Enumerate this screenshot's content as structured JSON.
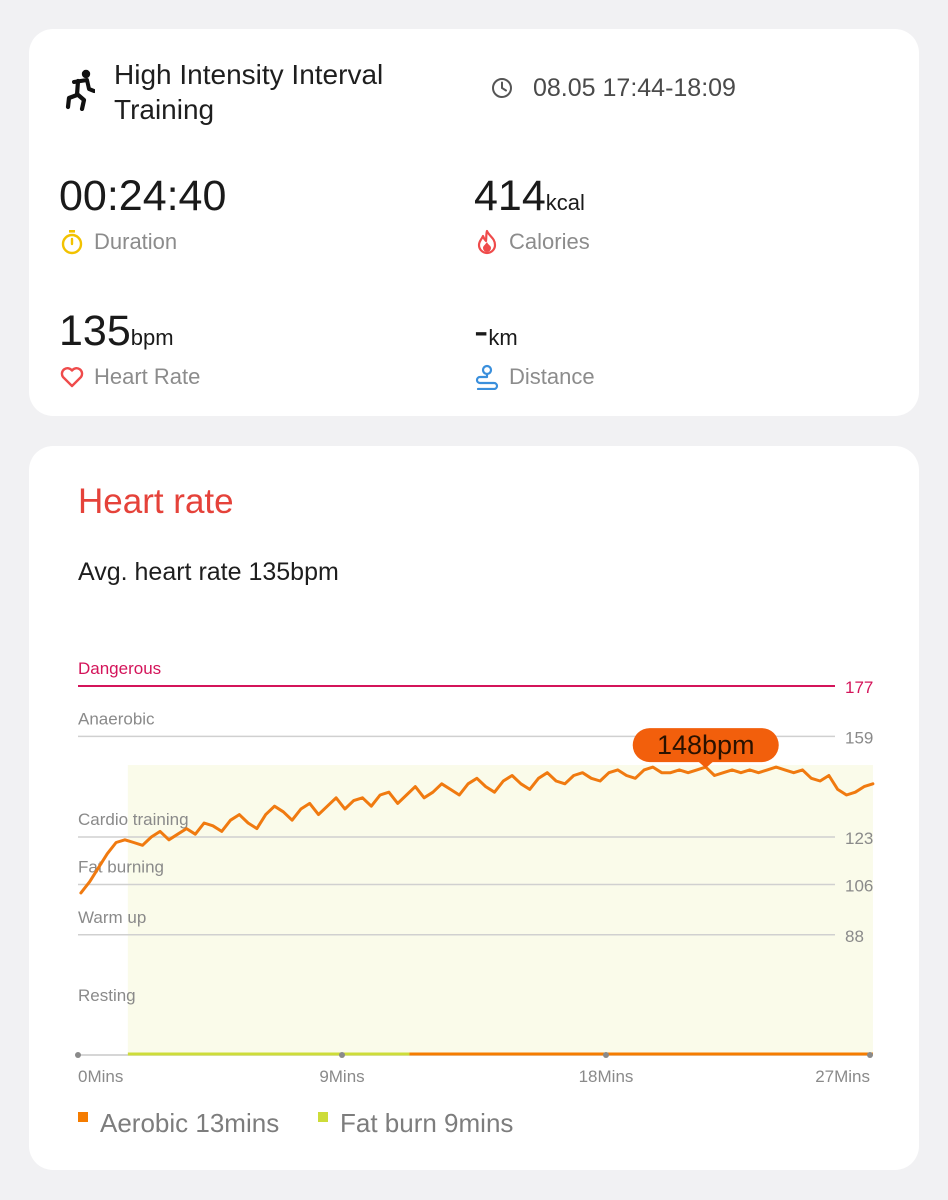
{
  "activity": {
    "icon": "running-person-icon",
    "title": "High Intensity Interval Training",
    "datetime": "08.05 17:44-18:09"
  },
  "metrics": {
    "duration": {
      "value": "00:24:40",
      "label": "Duration",
      "icon": "stopwatch-icon",
      "color": "#f2c200"
    },
    "calories": {
      "value": "414",
      "unit": "kcal",
      "label": "Calories",
      "icon": "flame-icon",
      "color": "#ef4b4b"
    },
    "heart_rate": {
      "value": "135",
      "unit": "bpm",
      "label": "Heart Rate",
      "icon": "heart-icon",
      "color": "#ef4b4b"
    },
    "distance": {
      "value": "-",
      "unit": "km",
      "label": "Distance",
      "icon": "route-icon",
      "color": "#3a8fdc"
    }
  },
  "heart_rate_section": {
    "title": "Heart rate",
    "avg_text": "Avg. heart rate 135bpm",
    "colors": {
      "title": "#e5423a",
      "line": "#f07a10",
      "fill": "#fafbea",
      "danger": "#d4145a"
    },
    "legend": [
      {
        "label": "Aerobic 13mins",
        "color": "#f57c00"
      },
      {
        "label": "Fat burn 9mins",
        "color": "#cddc39"
      }
    ]
  },
  "chart_data": {
    "type": "line",
    "x_unit": "minutes",
    "xlim": [
      0,
      27
    ],
    "ylim": [
      45,
      177
    ],
    "x_ticks": [
      {
        "value": 0,
        "label": "0Mins"
      },
      {
        "value": 9,
        "label": "9Mins"
      },
      {
        "value": 18,
        "label": "18Mins"
      },
      {
        "value": 27,
        "label": "27Mins"
      }
    ],
    "zones": [
      {
        "name": "Dangerous",
        "threshold": 177,
        "danger": true
      },
      {
        "name": "Anaerobic",
        "threshold": 159
      },
      {
        "name": "Cardio training",
        "threshold": 123
      },
      {
        "name": "Fat burning",
        "threshold": 106
      },
      {
        "name": "Warm up",
        "threshold": 88
      },
      {
        "name": "Resting",
        "threshold": null
      }
    ],
    "peak_label": "148bpm",
    "peak": {
      "x": 21.4,
      "y": 148
    },
    "fill_range": [
      1.7,
      27
    ],
    "series": [
      {
        "x": [
          0.1,
          0.4,
          0.7,
          1.0,
          1.3,
          1.6,
          1.9,
          2.2,
          2.5,
          2.8,
          3.1,
          3.4,
          3.7,
          4.0,
          4.3,
          4.6,
          4.9,
          5.2,
          5.5,
          5.8,
          6.1,
          6.4,
          6.7,
          7.0,
          7.3,
          7.6,
          7.9,
          8.2,
          8.5,
          8.8,
          9.1,
          9.4,
          9.7,
          10.0,
          10.3,
          10.6,
          10.9,
          11.2,
          11.5,
          11.8,
          12.1,
          12.4,
          12.7,
          13.0,
          13.3,
          13.6,
          13.9,
          14.2,
          14.5,
          14.8,
          15.1,
          15.4,
          15.7,
          16.0,
          16.3,
          16.6,
          16.9,
          17.2,
          17.5,
          17.8,
          18.1,
          18.4,
          18.7,
          19.0,
          19.3,
          19.6,
          19.9,
          20.2,
          20.5,
          20.8,
          21.1,
          21.4,
          21.7,
          22.0,
          22.3,
          22.6,
          22.9,
          23.2,
          23.5,
          23.8,
          24.1,
          24.4,
          24.7,
          25.0,
          25.3,
          25.6,
          25.9,
          26.2,
          26.5,
          26.8,
          27.1
        ],
        "y": [
          103,
          107,
          112,
          117,
          121,
          122,
          121,
          120,
          123,
          125,
          122,
          124,
          126,
          124,
          128,
          127,
          125,
          129,
          131,
          128,
          126,
          131,
          134,
          132,
          129,
          133,
          135,
          131,
          134,
          137,
          133,
          136,
          137,
          134,
          138,
          139,
          135,
          138,
          141,
          137,
          139,
          142,
          140,
          138,
          142,
          144,
          141,
          139,
          143,
          145,
          142,
          140,
          144,
          146,
          143,
          142,
          145,
          146,
          144,
          143,
          146,
          147,
          145,
          144,
          147,
          148,
          146,
          146,
          147,
          146,
          147,
          148,
          145,
          146,
          147,
          146,
          147,
          146,
          147,
          148,
          147,
          146,
          147,
          144,
          143,
          145,
          140,
          138,
          139,
          141,
          142
        ]
      }
    ]
  }
}
